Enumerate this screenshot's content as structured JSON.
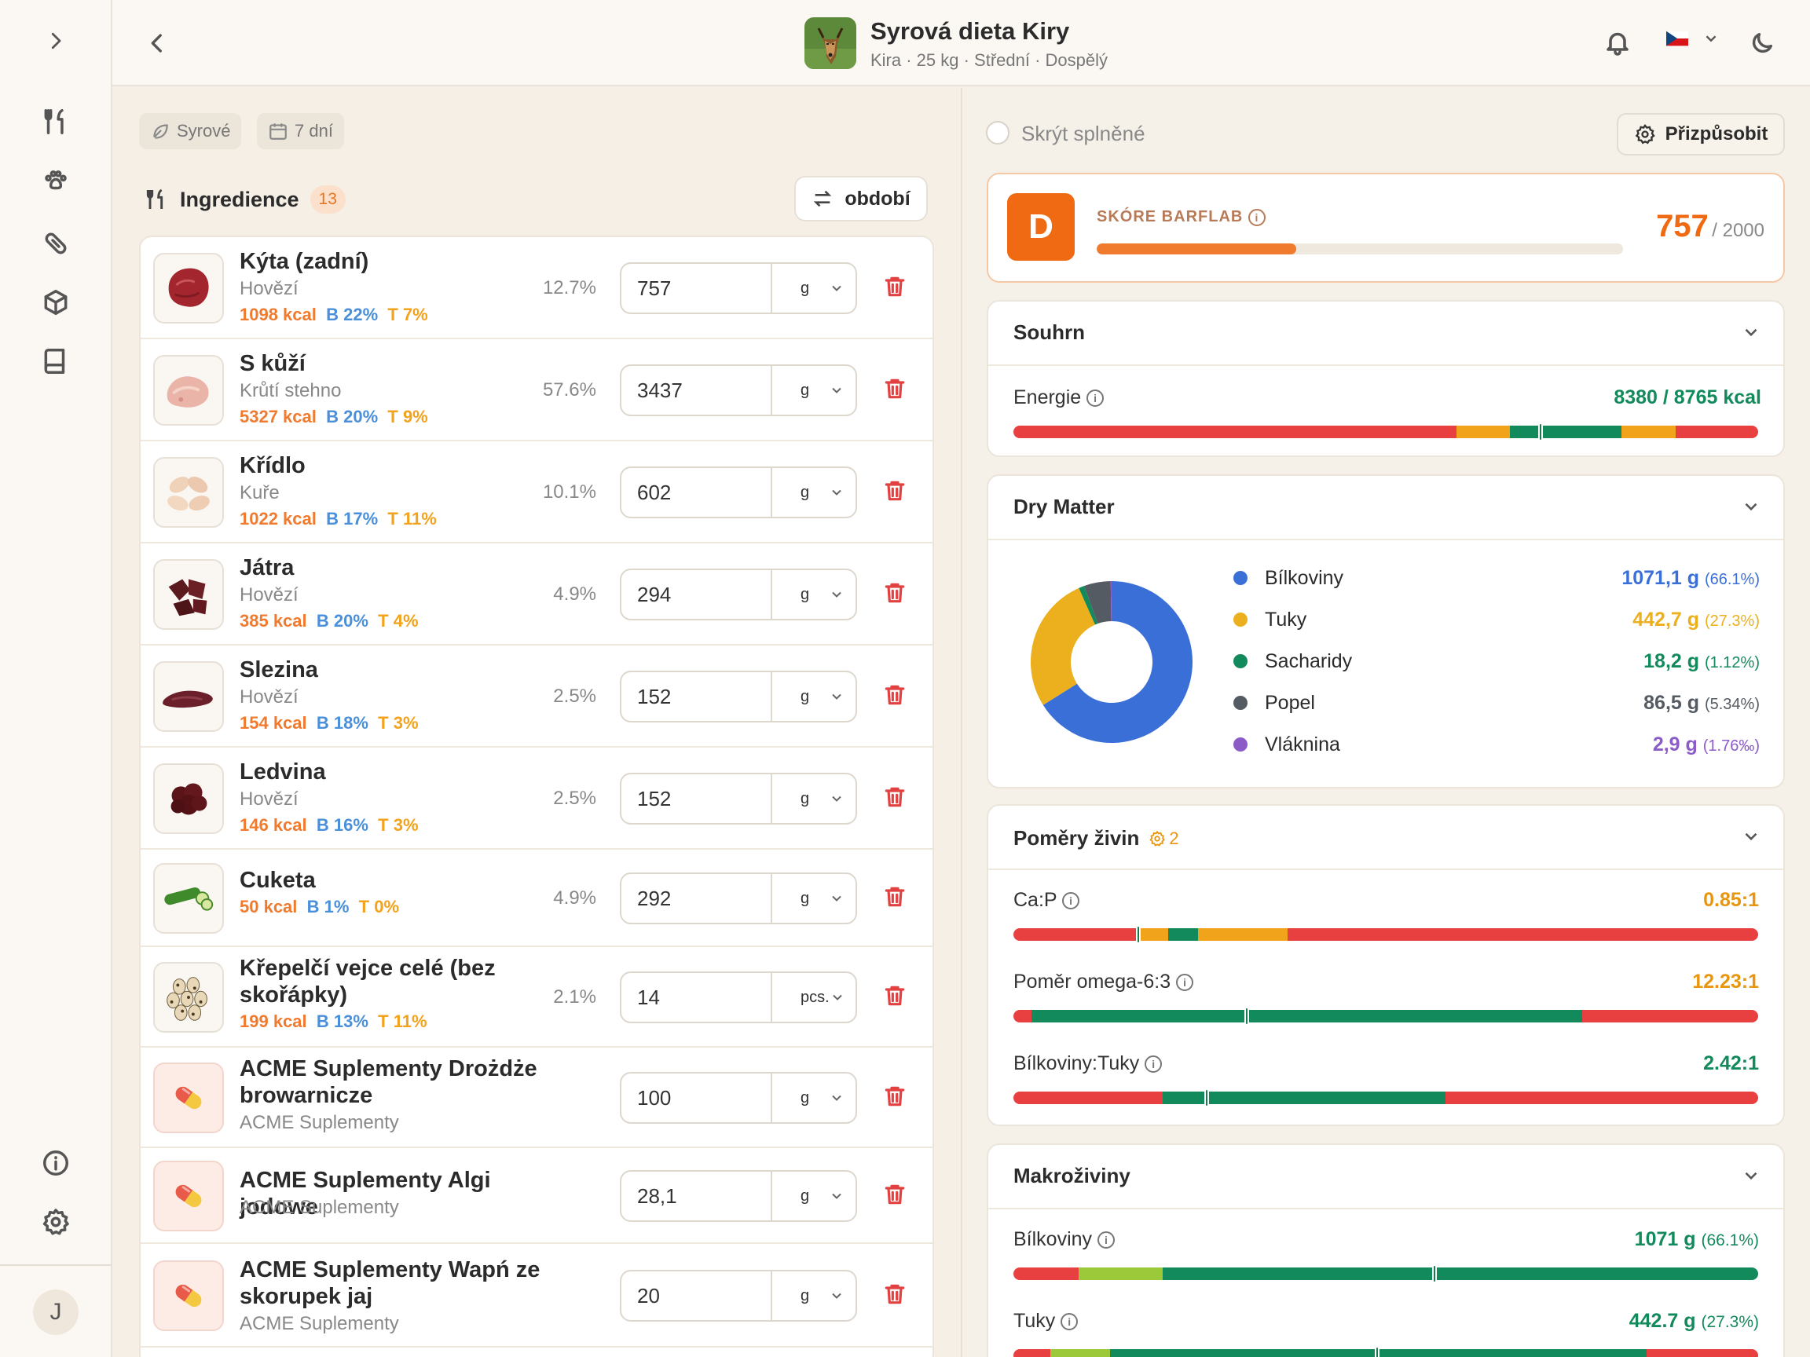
{
  "header": {
    "title": "Syrová dieta Kiry",
    "subtitle": "Kira · 25 kg · Střední · Dospělý",
    "language_flag": "CZ"
  },
  "filters": {
    "diet_type": "Syrové",
    "period": "7 dní"
  },
  "ingredients": {
    "heading": "Ingredience",
    "count": "13",
    "period_button": "období",
    "items": [
      {
        "name": "Kýta (zadní)",
        "source": "Hovězí",
        "kcal": "1098 kcal",
        "protein": "B 22%",
        "fat": "T 7%",
        "pct": "12.7%",
        "qty": "757",
        "unit": "g",
        "thumb": "beef-chunk"
      },
      {
        "name": "S kůží",
        "source": "Krůtí stehno",
        "kcal": "5327 kcal",
        "protein": "B 20%",
        "fat": "T 9%",
        "pct": "57.6%",
        "qty": "3437",
        "unit": "g",
        "thumb": "turkey-thigh"
      },
      {
        "name": "Křídlo",
        "source": "Kuře",
        "kcal": "1022 kcal",
        "protein": "B 17%",
        "fat": "T 11%",
        "pct": "10.1%",
        "qty": "602",
        "unit": "g",
        "thumb": "chicken-wings"
      },
      {
        "name": "Játra",
        "source": "Hovězí",
        "kcal": "385 kcal",
        "protein": "B 20%",
        "fat": "T 4%",
        "pct": "4.9%",
        "qty": "294",
        "unit": "g",
        "thumb": "liver"
      },
      {
        "name": "Slezina",
        "source": "Hovězí",
        "kcal": "154 kcal",
        "protein": "B 18%",
        "fat": "T 3%",
        "pct": "2.5%",
        "qty": "152",
        "unit": "g",
        "thumb": "spleen"
      },
      {
        "name": "Ledvina",
        "source": "Hovězí",
        "kcal": "146 kcal",
        "protein": "B 16%",
        "fat": "T 3%",
        "pct": "2.5%",
        "qty": "152",
        "unit": "g",
        "thumb": "kidney"
      },
      {
        "name": "Cuketa",
        "source": "",
        "kcal": "50 kcal",
        "protein": "B 1%",
        "fat": "T 0%",
        "pct": "4.9%",
        "qty": "292",
        "unit": "g",
        "thumb": "zucchini"
      },
      {
        "name": "Křepelčí vejce celé (bez skořápky)",
        "source": "",
        "kcal": "199 kcal",
        "protein": "B 13%",
        "fat": "T 11%",
        "pct": "2.1%",
        "qty": "14",
        "unit": "pcs.",
        "thumb": "quail-eggs"
      },
      {
        "name": "ACME Suplementy Drożdże browarnicze",
        "source": "ACME Suplementy",
        "kcal": "",
        "protein": "",
        "fat": "",
        "pct": "",
        "qty": "100",
        "unit": "g",
        "thumb": "pill"
      },
      {
        "name": "ACME Suplementy Algi jodowe",
        "source": "ACME Suplementy",
        "kcal": "",
        "protein": "",
        "fat": "",
        "pct": "",
        "qty": "28,1",
        "unit": "g",
        "thumb": "pill"
      },
      {
        "name": "ACME Suplementy Wapń ze skorupek jaj",
        "source": "ACME Suplementy",
        "kcal": "",
        "protein": "",
        "fat": "",
        "pct": "",
        "qty": "20",
        "unit": "g",
        "thumb": "pill"
      }
    ]
  },
  "right": {
    "hide_done": "Skrýt splněné",
    "customize": "Přizpůsobit",
    "score": {
      "grade": "D",
      "label": "SKÓRE BARFLAB",
      "value": "757",
      "max": "/ 2000",
      "fraction": 0.3785
    },
    "summary": {
      "title": "Souhrn",
      "energy_label": "Energie",
      "energy_value": "8380 / 8765 kcal",
      "energy_marker": 0.71
    },
    "dry_matter": {
      "title": "Dry Matter",
      "items": [
        {
          "name": "Bílkoviny",
          "value": "1071,1 g",
          "pct": "(66.1%)",
          "color": "#3b6fd8",
          "share": 66.1
        },
        {
          "name": "Tuky",
          "value": "442,7 g",
          "pct": "(27.3%)",
          "color": "#ecb01e",
          "share": 27.3
        },
        {
          "name": "Sacharidy",
          "value": "18,2 g",
          "pct": "(1.12%)",
          "color": "#138a5c",
          "share": 1.12
        },
        {
          "name": "Popel",
          "value": "86,5 g",
          "pct": "(5.34%)",
          "color": "#555b62",
          "share": 5.34
        },
        {
          "name": "Vláknina",
          "value": "2,9 g",
          "pct": "(1.76‰)",
          "color": "#8b5cc8",
          "share": 0.18
        }
      ]
    },
    "ratios": {
      "title": "Poměry živin",
      "badge": "2",
      "items": [
        {
          "label": "Ca:P",
          "value": "0.85:1",
          "color": "#e8960f",
          "marker": 0.17
        },
        {
          "label": "Poměr omega-6:3",
          "value": "12.23:1",
          "color": "#e8960f",
          "marker": 0.315
        },
        {
          "label": "Bílkoviny:Tuky",
          "value": "2.42:1",
          "color": "#138a5c",
          "marker": 0.262
        }
      ]
    },
    "macros": {
      "title": "Makroživiny",
      "items": [
        {
          "label": "Bílkoviny",
          "value": "1071 g",
          "pct": "(66.1%)",
          "marker": 0.567
        },
        {
          "label": "Tuky",
          "value": "442.7 g",
          "pct": "(27.3%)",
          "marker": 0.49
        }
      ]
    }
  },
  "user": {
    "initial": "J"
  }
}
